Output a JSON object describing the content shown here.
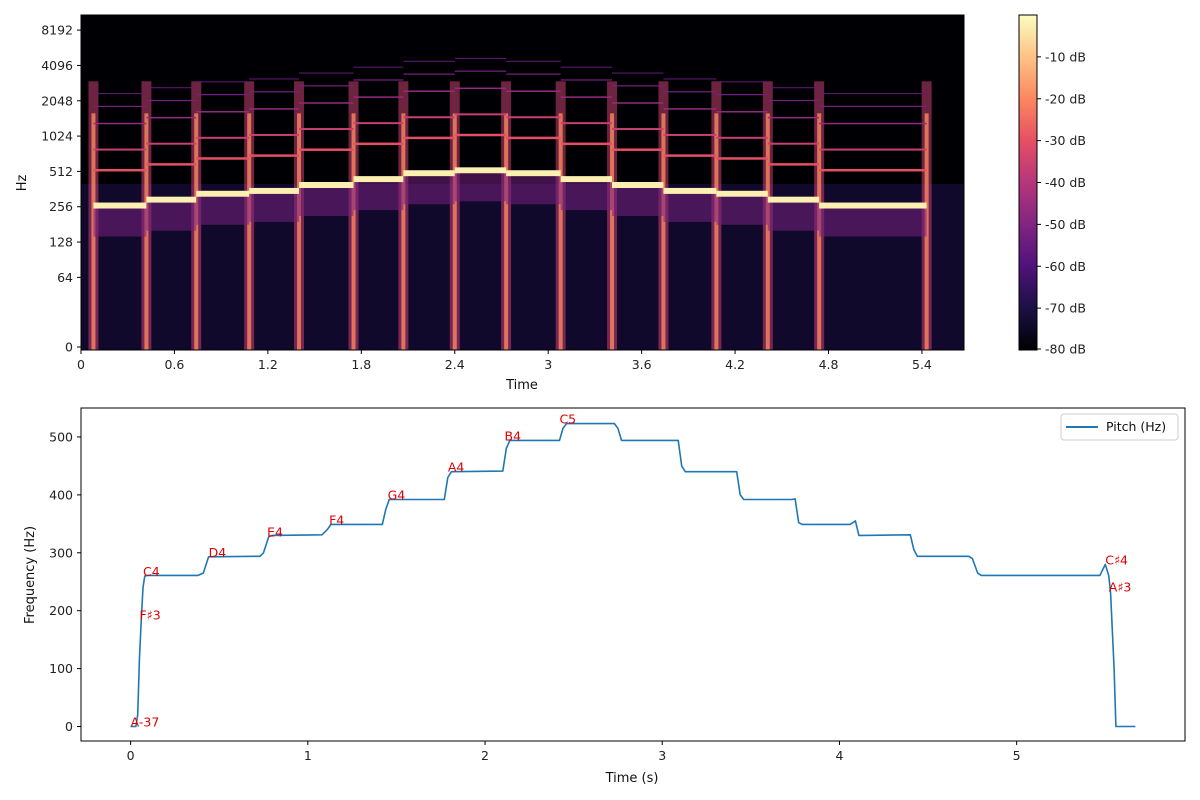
{
  "chart_data": [
    {
      "type": "heatmap",
      "xlabel": "Time",
      "ylabel": "Hz",
      "x_ticks": [
        "0",
        "0.6",
        "1.2",
        "1.8",
        "2.4",
        "3",
        "3.6",
        "4.2",
        "4.8",
        "5.4"
      ],
      "x_tick_values": [
        0,
        0.6,
        1.2,
        1.8,
        2.4,
        3.0,
        3.6,
        4.2,
        4.8,
        5.4
      ],
      "xlim": [
        0,
        5.67
      ],
      "y_ticks": [
        "0",
        "64",
        "128",
        "256",
        "512",
        "1024",
        "2048",
        "4096",
        "8192"
      ],
      "y_tick_values": [
        0,
        64,
        128,
        256,
        512,
        1024,
        2048,
        4096,
        8192
      ],
      "y_scale": "log2",
      "colorbar_ticks": [
        "-10 dB",
        "-20 dB",
        "-30 dB",
        "-40 dB",
        "-50 dB",
        "-60 dB",
        "-70 dB",
        "-80 dB"
      ],
      "colorbar_values": [
        -10,
        -20,
        -30,
        -40,
        -50,
        -60,
        -70,
        -80
      ],
      "colorbar_range": [
        -80,
        0
      ],
      "colormap": [
        "#000004",
        "#1c1044",
        "#4f127b",
        "#812581",
        "#b5367a",
        "#e55064",
        "#fb8761",
        "#fec287",
        "#fcfdbf"
      ],
      "onsets": [
        0.08,
        0.42,
        0.74,
        1.08,
        1.4,
        1.75,
        2.07,
        2.4,
        2.73,
        3.08,
        3.41,
        3.74,
        4.08,
        4.41,
        4.74,
        5.43
      ],
      "note_segments": [
        {
          "start": 0.08,
          "end": 0.42,
          "f0": 262
        },
        {
          "start": 0.42,
          "end": 0.74,
          "f0": 294
        },
        {
          "start": 0.74,
          "end": 1.08,
          "f0": 330
        },
        {
          "start": 1.08,
          "end": 1.4,
          "f0": 349
        },
        {
          "start": 1.4,
          "end": 1.75,
          "f0": 392
        },
        {
          "start": 1.75,
          "end": 2.07,
          "f0": 440
        },
        {
          "start": 2.07,
          "end": 2.4,
          "f0": 494
        },
        {
          "start": 2.4,
          "end": 2.73,
          "f0": 523
        },
        {
          "start": 2.73,
          "end": 3.08,
          "f0": 494
        },
        {
          "start": 3.08,
          "end": 3.41,
          "f0": 440
        },
        {
          "start": 3.41,
          "end": 3.74,
          "f0": 392
        },
        {
          "start": 3.74,
          "end": 4.08,
          "f0": 349
        },
        {
          "start": 4.08,
          "end": 4.41,
          "f0": 330
        },
        {
          "start": 4.41,
          "end": 4.74,
          "f0": 294
        },
        {
          "start": 4.74,
          "end": 5.43,
          "f0": 262
        }
      ]
    },
    {
      "type": "line",
      "xlabel": "Time (s)",
      "ylabel": "Frequency (Hz)",
      "xlim": [
        -0.28,
        5.95
      ],
      "ylim": [
        -25,
        550
      ],
      "x_ticks": [
        "0",
        "1",
        "2",
        "3",
        "4",
        "5"
      ],
      "x_tick_values": [
        0,
        1,
        2,
        3,
        4,
        5
      ],
      "y_ticks": [
        "0",
        "100",
        "200",
        "300",
        "400",
        "500"
      ],
      "y_tick_values": [
        0,
        100,
        200,
        300,
        400,
        500
      ],
      "legend": "upper-right",
      "series": [
        {
          "name": "Pitch (Hz)",
          "color": "#1f77b4",
          "points": [
            [
              0.0,
              0
            ],
            [
              0.03,
              0
            ],
            [
              0.04,
              20
            ],
            [
              0.05,
              120
            ],
            [
              0.06,
              185
            ],
            [
              0.07,
              240
            ],
            [
              0.08,
              260
            ],
            [
              0.1,
              261
            ],
            [
              0.38,
              261
            ],
            [
              0.41,
              265
            ],
            [
              0.44,
              293
            ],
            [
              0.73,
              294
            ],
            [
              0.75,
              300
            ],
            [
              0.78,
              328
            ],
            [
              0.8,
              330
            ],
            [
              1.08,
              331
            ],
            [
              1.11,
              340
            ],
            [
              1.13,
              349
            ],
            [
              1.42,
              349
            ],
            [
              1.44,
              375
            ],
            [
              1.46,
              392
            ],
            [
              1.77,
              392
            ],
            [
              1.79,
              430
            ],
            [
              1.81,
              440
            ],
            [
              2.1,
              441
            ],
            [
              2.12,
              480
            ],
            [
              2.14,
              494
            ],
            [
              2.42,
              494
            ],
            [
              2.44,
              515
            ],
            [
              2.46,
              523
            ],
            [
              2.73,
              523
            ],
            [
              2.75,
              515
            ],
            [
              2.77,
              494
            ],
            [
              3.09,
              494
            ],
            [
              3.11,
              450
            ],
            [
              3.13,
              440
            ],
            [
              3.42,
              440
            ],
            [
              3.44,
              400
            ],
            [
              3.46,
              392
            ],
            [
              3.73,
              392
            ],
            [
              3.75,
              393
            ],
            [
              3.77,
              352
            ],
            [
              3.79,
              349
            ],
            [
              4.06,
              349
            ],
            [
              4.09,
              355
            ],
            [
              4.11,
              330
            ],
            [
              4.13,
              330
            ],
            [
              4.4,
              331
            ],
            [
              4.42,
              305
            ],
            [
              4.44,
              294
            ],
            [
              4.73,
              294
            ],
            [
              4.75,
              290
            ],
            [
              4.78,
              265
            ],
            [
              4.8,
              261
            ],
            [
              5.47,
              261
            ],
            [
              5.5,
              280
            ],
            [
              5.52,
              260
            ],
            [
              5.53,
              230
            ],
            [
              5.55,
              100
            ],
            [
              5.56,
              0
            ],
            [
              5.67,
              0
            ]
          ]
        }
      ],
      "annotations": [
        {
          "text": "A-37",
          "x": 0.0,
          "y": 0
        },
        {
          "text": "F♯3",
          "x": 0.05,
          "y": 185
        },
        {
          "text": "C4",
          "x": 0.07,
          "y": 260
        },
        {
          "text": "D4",
          "x": 0.44,
          "y": 293
        },
        {
          "text": "E4",
          "x": 0.77,
          "y": 328
        },
        {
          "text": "F4",
          "x": 1.12,
          "y": 349
        },
        {
          "text": "G4",
          "x": 1.45,
          "y": 392
        },
        {
          "text": "A4",
          "x": 1.79,
          "y": 440
        },
        {
          "text": "B4",
          "x": 2.11,
          "y": 494
        },
        {
          "text": "C5",
          "x": 2.42,
          "y": 523
        },
        {
          "text": "C♯4",
          "x": 5.5,
          "y": 280
        },
        {
          "text": "A♯3",
          "x": 5.52,
          "y": 233
        }
      ]
    }
  ]
}
